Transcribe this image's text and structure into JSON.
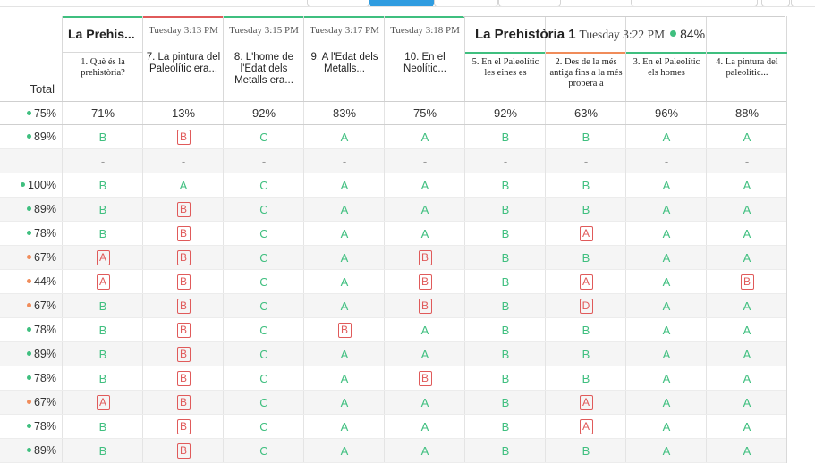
{
  "colors": {
    "green": "#3fbf7f",
    "red": "#e05a5a",
    "orange": "#f08c5a",
    "blue": "#2f9ce0"
  },
  "group1": {
    "title": "La Prehis..."
  },
  "group2": {
    "title": "La Prehistòria 1",
    "time": "Tuesday 3:22 PM",
    "pct": "84%"
  },
  "total_label": "Total",
  "questions": [
    {
      "time": "",
      "title": "1. Què és la prehistòria?"
    },
    {
      "time": "Tuesday 3:13 PM",
      "title": "7. La pintura del Paleolític era..."
    },
    {
      "time": "Tuesday 3:15 PM",
      "title": "8. L'home de l'Edat dels Metalls era..."
    },
    {
      "time": "Tuesday 3:17 PM",
      "title": "9. A l'Edat dels Metalls..."
    },
    {
      "time": "Tuesday 3:18 PM",
      "title": "10. En el Neolític..."
    },
    {
      "time": "",
      "title": "5. En el Paleolític les eines es"
    },
    {
      "time": "",
      "title": "2. Des de la més antiga fins a la més propera a"
    },
    {
      "time": "",
      "title": "3. En el Paleolític els homes"
    },
    {
      "time": "",
      "title": "4. La pintura del paleolític..."
    }
  ],
  "total_avg": {
    "pct": "75%",
    "dot": "green"
  },
  "averages": [
    "71%",
    "13%",
    "92%",
    "83%",
    "75%",
    "92%",
    "63%",
    "96%",
    "88%"
  ],
  "rows": [
    {
      "total": "89%",
      "dot": "green",
      "cells": [
        {
          "v": "B",
          "ok": true
        },
        {
          "v": "B",
          "ok": false
        },
        {
          "v": "C",
          "ok": true
        },
        {
          "v": "A",
          "ok": true
        },
        {
          "v": "A",
          "ok": true
        },
        {
          "v": "B",
          "ok": true
        },
        {
          "v": "B",
          "ok": true
        },
        {
          "v": "A",
          "ok": true
        },
        {
          "v": "A",
          "ok": true
        }
      ]
    },
    {
      "total": "",
      "dot": "",
      "cells": [
        {
          "v": "-"
        },
        {
          "v": "-"
        },
        {
          "v": "-"
        },
        {
          "v": "-"
        },
        {
          "v": "-"
        },
        {
          "v": "-"
        },
        {
          "v": "-"
        },
        {
          "v": "-"
        },
        {
          "v": "-"
        }
      ]
    },
    {
      "total": "100%",
      "dot": "green",
      "cells": [
        {
          "v": "B",
          "ok": true
        },
        {
          "v": "A",
          "ok": true
        },
        {
          "v": "C",
          "ok": true
        },
        {
          "v": "A",
          "ok": true
        },
        {
          "v": "A",
          "ok": true
        },
        {
          "v": "B",
          "ok": true
        },
        {
          "v": "B",
          "ok": true
        },
        {
          "v": "A",
          "ok": true
        },
        {
          "v": "A",
          "ok": true
        }
      ]
    },
    {
      "total": "89%",
      "dot": "green",
      "cells": [
        {
          "v": "B",
          "ok": true
        },
        {
          "v": "B",
          "ok": false
        },
        {
          "v": "C",
          "ok": true
        },
        {
          "v": "A",
          "ok": true
        },
        {
          "v": "A",
          "ok": true
        },
        {
          "v": "B",
          "ok": true
        },
        {
          "v": "B",
          "ok": true
        },
        {
          "v": "A",
          "ok": true
        },
        {
          "v": "A",
          "ok": true
        }
      ]
    },
    {
      "total": "78%",
      "dot": "green",
      "cells": [
        {
          "v": "B",
          "ok": true
        },
        {
          "v": "B",
          "ok": false
        },
        {
          "v": "C",
          "ok": true
        },
        {
          "v": "A",
          "ok": true
        },
        {
          "v": "A",
          "ok": true
        },
        {
          "v": "B",
          "ok": true
        },
        {
          "v": "A",
          "ok": false
        },
        {
          "v": "A",
          "ok": true
        },
        {
          "v": "A",
          "ok": true
        }
      ]
    },
    {
      "total": "67%",
      "dot": "orange",
      "cells": [
        {
          "v": "A",
          "ok": false
        },
        {
          "v": "B",
          "ok": false
        },
        {
          "v": "C",
          "ok": true
        },
        {
          "v": "A",
          "ok": true
        },
        {
          "v": "B",
          "ok": false
        },
        {
          "v": "B",
          "ok": true
        },
        {
          "v": "B",
          "ok": true
        },
        {
          "v": "A",
          "ok": true
        },
        {
          "v": "A",
          "ok": true
        }
      ]
    },
    {
      "total": "44%",
      "dot": "orange",
      "cells": [
        {
          "v": "A",
          "ok": false
        },
        {
          "v": "B",
          "ok": false
        },
        {
          "v": "C",
          "ok": true
        },
        {
          "v": "A",
          "ok": true
        },
        {
          "v": "B",
          "ok": false
        },
        {
          "v": "B",
          "ok": true
        },
        {
          "v": "A",
          "ok": false
        },
        {
          "v": "A",
          "ok": true
        },
        {
          "v": "B",
          "ok": false
        }
      ]
    },
    {
      "total": "67%",
      "dot": "orange",
      "cells": [
        {
          "v": "B",
          "ok": true
        },
        {
          "v": "B",
          "ok": false
        },
        {
          "v": "C",
          "ok": true
        },
        {
          "v": "A",
          "ok": true
        },
        {
          "v": "B",
          "ok": false
        },
        {
          "v": "B",
          "ok": true
        },
        {
          "v": "D",
          "ok": false
        },
        {
          "v": "A",
          "ok": true
        },
        {
          "v": "A",
          "ok": true
        }
      ]
    },
    {
      "total": "78%",
      "dot": "green",
      "cells": [
        {
          "v": "B",
          "ok": true
        },
        {
          "v": "B",
          "ok": false
        },
        {
          "v": "C",
          "ok": true
        },
        {
          "v": "B",
          "ok": false
        },
        {
          "v": "A",
          "ok": true
        },
        {
          "v": "B",
          "ok": true
        },
        {
          "v": "B",
          "ok": true
        },
        {
          "v": "A",
          "ok": true
        },
        {
          "v": "A",
          "ok": true
        }
      ]
    },
    {
      "total": "89%",
      "dot": "green",
      "cells": [
        {
          "v": "B",
          "ok": true
        },
        {
          "v": "B",
          "ok": false
        },
        {
          "v": "C",
          "ok": true
        },
        {
          "v": "A",
          "ok": true
        },
        {
          "v": "A",
          "ok": true
        },
        {
          "v": "B",
          "ok": true
        },
        {
          "v": "B",
          "ok": true
        },
        {
          "v": "A",
          "ok": true
        },
        {
          "v": "A",
          "ok": true
        }
      ]
    },
    {
      "total": "78%",
      "dot": "green",
      "cells": [
        {
          "v": "B",
          "ok": true
        },
        {
          "v": "B",
          "ok": false
        },
        {
          "v": "C",
          "ok": true
        },
        {
          "v": "A",
          "ok": true
        },
        {
          "v": "B",
          "ok": false
        },
        {
          "v": "B",
          "ok": true
        },
        {
          "v": "B",
          "ok": true
        },
        {
          "v": "A",
          "ok": true
        },
        {
          "v": "A",
          "ok": true
        }
      ]
    },
    {
      "total": "67%",
      "dot": "orange",
      "cells": [
        {
          "v": "A",
          "ok": false
        },
        {
          "v": "B",
          "ok": false
        },
        {
          "v": "C",
          "ok": true
        },
        {
          "v": "A",
          "ok": true
        },
        {
          "v": "A",
          "ok": true
        },
        {
          "v": "B",
          "ok": true
        },
        {
          "v": "A",
          "ok": false
        },
        {
          "v": "A",
          "ok": true
        },
        {
          "v": "A",
          "ok": true
        }
      ]
    },
    {
      "total": "78%",
      "dot": "green",
      "cells": [
        {
          "v": "B",
          "ok": true
        },
        {
          "v": "B",
          "ok": false
        },
        {
          "v": "C",
          "ok": true
        },
        {
          "v": "A",
          "ok": true
        },
        {
          "v": "A",
          "ok": true
        },
        {
          "v": "B",
          "ok": true
        },
        {
          "v": "A",
          "ok": false
        },
        {
          "v": "A",
          "ok": true
        },
        {
          "v": "A",
          "ok": true
        }
      ]
    },
    {
      "total": "89%",
      "dot": "green",
      "cells": [
        {
          "v": "B",
          "ok": true
        },
        {
          "v": "B",
          "ok": false
        },
        {
          "v": "C",
          "ok": true
        },
        {
          "v": "A",
          "ok": true
        },
        {
          "v": "A",
          "ok": true
        },
        {
          "v": "B",
          "ok": true
        },
        {
          "v": "B",
          "ok": true
        },
        {
          "v": "A",
          "ok": true
        },
        {
          "v": "A",
          "ok": true
        }
      ]
    }
  ]
}
